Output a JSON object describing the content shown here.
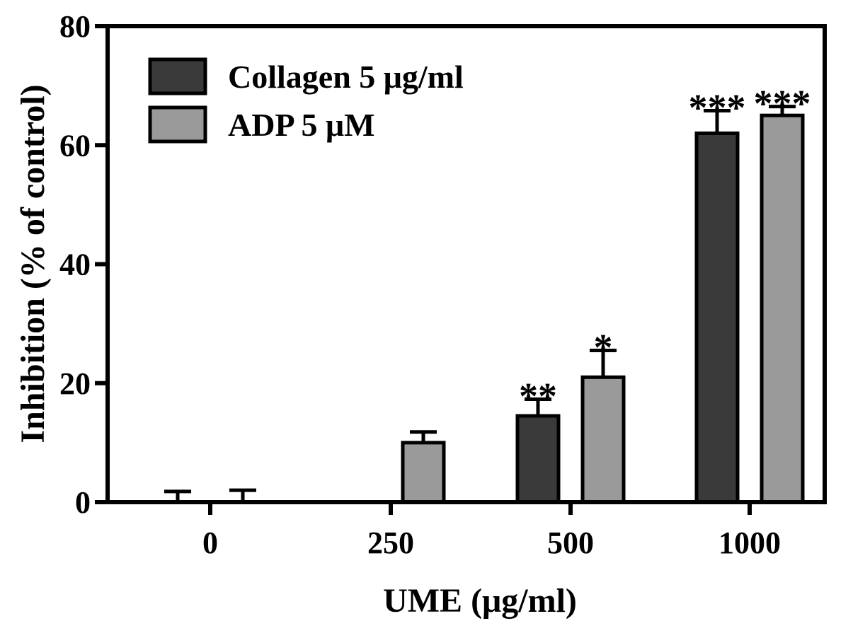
{
  "chart_data": {
    "type": "bar",
    "categories": [
      "0",
      "250",
      "500",
      "1000"
    ],
    "series": [
      {
        "name": "Collagen 5 μg/ml",
        "color": "#3a3a3a",
        "values": [
          0,
          0,
          14.5,
          62
        ],
        "errors": [
          1.8,
          0,
          2.8,
          3.8
        ],
        "significance": [
          "",
          "",
          "**",
          "***"
        ]
      },
      {
        "name": "ADP 5 μM",
        "color": "#9a9a9a",
        "values": [
          0,
          10,
          21,
          65
        ],
        "errors": [
          2.0,
          1.8,
          4.5,
          1.5
        ],
        "significance": [
          "",
          "",
          "*",
          "***"
        ]
      }
    ],
    "xlabel": "UME (μg/ml)",
    "ylabel": "Inhibition (% of control)",
    "ylim": [
      0,
      80
    ],
    "yticks": [
      "0",
      "20",
      "40",
      "60",
      "80"
    ],
    "grid": false,
    "legend_position": "top-left"
  }
}
